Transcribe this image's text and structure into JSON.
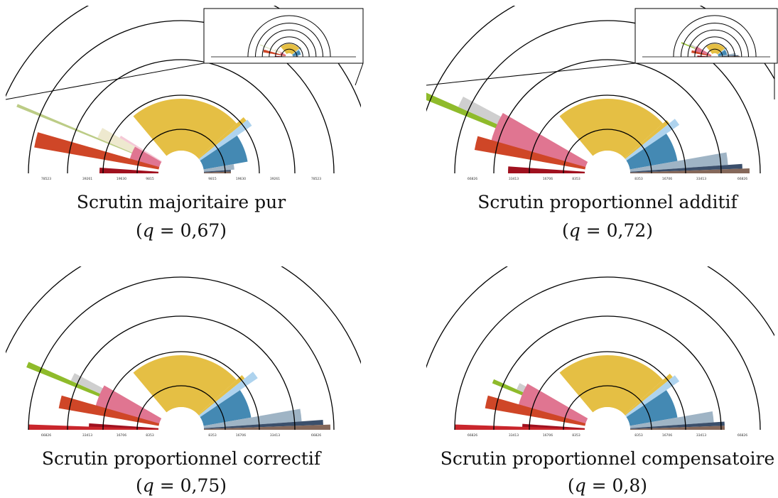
{
  "colors": {
    "yellow": "#e5bf44",
    "blue": "#4489b3",
    "lightblue": "#aed3ee",
    "brown": "#85685a",
    "steel": "#9fb4c5",
    "navy": "#3b4f6b",
    "pink": "#e07591",
    "lightpink": "#f5c9d6",
    "orange": "#cf4627",
    "darkred": "#a0111f",
    "red": "#c9262c",
    "olive": "#bccc86",
    "green": "#8fbb2b",
    "grey": "#cfcfcf",
    "cream": "#eee9cf"
  },
  "chart_data": [
    {
      "type": "polar-bar",
      "caption": "Scrutin majoritaire pur",
      "q_label": "q = 0,67",
      "q": 0.67,
      "has_inset": true,
      "left_ticks": [
        "78523",
        "39261",
        "19630",
        "9815"
      ],
      "right_ticks": [
        "9815",
        "19630",
        "39261",
        "78523"
      ],
      "sectors": [
        {
          "color": "yellow",
          "start": 42,
          "end": 130,
          "r": 105
        },
        {
          "color": "yellow",
          "start": 39,
          "end": 42,
          "r": 118
        },
        {
          "color": "lightblue",
          "start": 34,
          "end": 39,
          "r": 120
        },
        {
          "color": "blue",
          "start": 10,
          "end": 34,
          "r": 95
        },
        {
          "color": "steel",
          "start": 4,
          "end": 10,
          "r": 75
        },
        {
          "color": "navy",
          "start": 2,
          "end": 4,
          "r": 70
        },
        {
          "color": "brown",
          "start": 0,
          "end": 2,
          "r": 70
        },
        {
          "color": "olive",
          "start": 157,
          "end": 158,
          "r": 250
        },
        {
          "color": "cream",
          "start": 150,
          "end": 157,
          "r": 128
        },
        {
          "color": "lightpink",
          "start": 148,
          "end": 150,
          "r": 100
        },
        {
          "color": "pink",
          "start": 150,
          "end": 166,
          "r": 75
        },
        {
          "color": "orange",
          "start": 164,
          "end": 170,
          "r": 210
        },
        {
          "color": "darkred",
          "start": 176,
          "end": 180,
          "r": 115
        }
      ]
    },
    {
      "type": "polar-bar",
      "caption": "Scrutin proportionnel additif",
      "q_label": "q = 0,72",
      "q": 0.72,
      "has_inset": true,
      "left_ticks": [
        "66826",
        "33413",
        "16706",
        "8353"
      ],
      "right_ticks": [
        "8353",
        "16706",
        "33413",
        "66826"
      ],
      "sectors": [
        {
          "color": "yellow",
          "start": 42,
          "end": 130,
          "r": 105
        },
        {
          "color": "yellow",
          "start": 39,
          "end": 42,
          "r": 112
        },
        {
          "color": "lightblue",
          "start": 34,
          "end": 39,
          "r": 122
        },
        {
          "color": "blue",
          "start": 10,
          "end": 34,
          "r": 100
        },
        {
          "color": "steel",
          "start": 4,
          "end": 10,
          "r": 170
        },
        {
          "color": "navy",
          "start": 2,
          "end": 4,
          "r": 190
        },
        {
          "color": "brown",
          "start": 0,
          "end": 2,
          "r": 200
        },
        {
          "color": "green",
          "start": 156,
          "end": 158,
          "r": 290
        },
        {
          "color": "grey",
          "start": 152,
          "end": 156,
          "r": 230
        },
        {
          "color": "cream",
          "start": 150,
          "end": 152,
          "r": 150
        },
        {
          "color": "pink",
          "start": 150,
          "end": 166,
          "r": 170
        },
        {
          "color": "orange",
          "start": 164,
          "end": 170,
          "r": 190
        },
        {
          "color": "darkred",
          "start": 176,
          "end": 180,
          "r": 140
        }
      ]
    },
    {
      "type": "polar-bar",
      "caption": "Scrutin proportionnel correctif",
      "q_label": "q = 0,75",
      "q": 0.75,
      "has_inset": false,
      "left_ticks": [
        "66826",
        "33413",
        "16706",
        "8353"
      ],
      "right_ticks": [
        "8353",
        "16706",
        "33413",
        "66826"
      ],
      "sectors": [
        {
          "color": "yellow",
          "start": 42,
          "end": 130,
          "r": 105
        },
        {
          "color": "yellow",
          "start": 39,
          "end": 42,
          "r": 115
        },
        {
          "color": "lightblue",
          "start": 34,
          "end": 39,
          "r": 130
        },
        {
          "color": "blue",
          "start": 10,
          "end": 34,
          "r": 100
        },
        {
          "color": "steel",
          "start": 4,
          "end": 10,
          "r": 170
        },
        {
          "color": "navy",
          "start": 2,
          "end": 4,
          "r": 200
        },
        {
          "color": "brown",
          "start": 0,
          "end": 2,
          "r": 210
        },
        {
          "color": "green",
          "start": 156,
          "end": 158,
          "r": 235
        },
        {
          "color": "grey",
          "start": 152,
          "end": 156,
          "r": 170
        },
        {
          "color": "cream",
          "start": 150,
          "end": 152,
          "r": 120
        },
        {
          "color": "pink",
          "start": 150,
          "end": 166,
          "r": 125
        },
        {
          "color": "orange",
          "start": 164,
          "end": 170,
          "r": 175
        },
        {
          "color": "darkred",
          "start": 176,
          "end": 180,
          "r": 130
        },
        {
          "color": "red",
          "start": 178,
          "end": 180,
          "r": 215
        }
      ]
    },
    {
      "type": "polar-bar",
      "caption": "Scrutin proportionnel compensatoire",
      "q_label": "q = 0,8",
      "q": 0.8,
      "has_inset": false,
      "left_ticks": [
        "66826",
        "33413",
        "16706",
        "8353"
      ],
      "right_ticks": [
        "8353",
        "16706",
        "33413",
        "66826"
      ],
      "sectors": [
        {
          "color": "yellow",
          "start": 42,
          "end": 130,
          "r": 105
        },
        {
          "color": "yellow",
          "start": 39,
          "end": 42,
          "r": 118
        },
        {
          "color": "lightblue",
          "start": 34,
          "end": 39,
          "r": 122
        },
        {
          "color": "blue",
          "start": 10,
          "end": 34,
          "r": 100
        },
        {
          "color": "steel",
          "start": 4,
          "end": 10,
          "r": 150
        },
        {
          "color": "navy",
          "start": 2,
          "end": 4,
          "r": 165
        },
        {
          "color": "brown",
          "start": 0,
          "end": 2,
          "r": 165
        },
        {
          "color": "green",
          "start": 156,
          "end": 158,
          "r": 175
        },
        {
          "color": "grey",
          "start": 152,
          "end": 156,
          "r": 140
        },
        {
          "color": "cream",
          "start": 150,
          "end": 152,
          "r": 120
        },
        {
          "color": "pink",
          "start": 150,
          "end": 166,
          "r": 130
        },
        {
          "color": "orange",
          "start": 164,
          "end": 170,
          "r": 175
        },
        {
          "color": "darkred",
          "start": 176,
          "end": 180,
          "r": 120
        },
        {
          "color": "red",
          "start": 178,
          "end": 180,
          "r": 215
        }
      ]
    }
  ]
}
